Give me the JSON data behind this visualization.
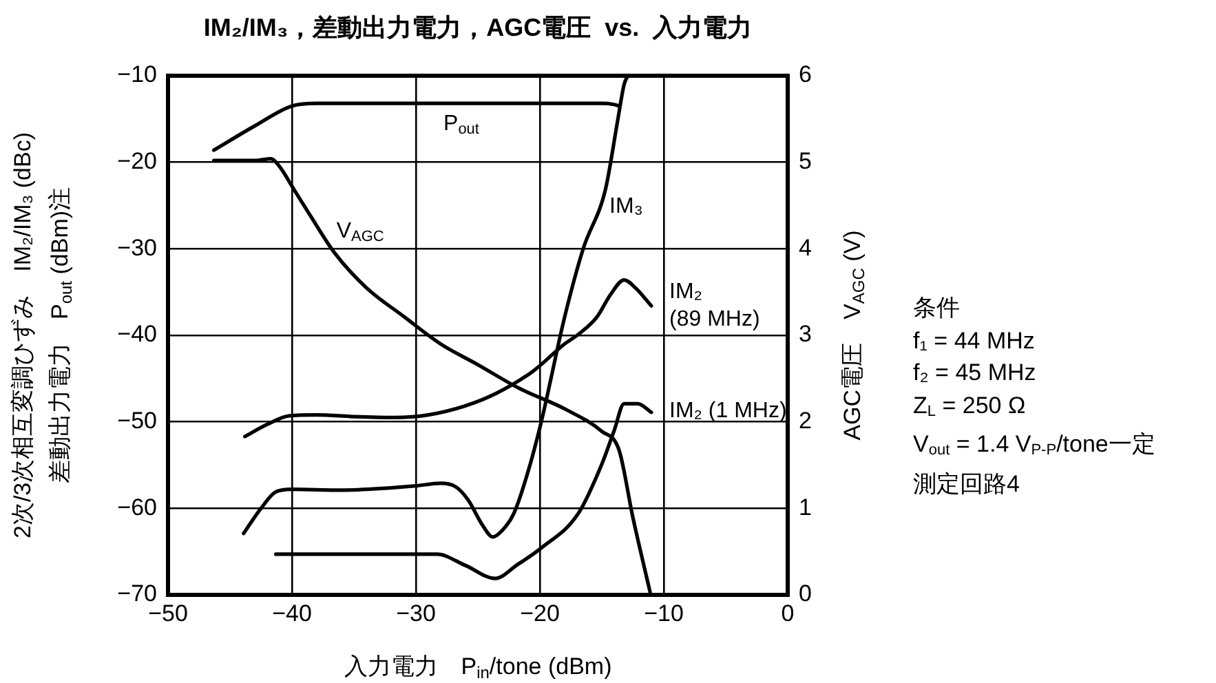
{
  "chart_data": {
    "type": "line",
    "title": "IM₂/IM₃，差動出力電力，AGC電圧  vs.  入力電力",
    "xlabel": "入力電力　P$_{in}$/tone (dBm)",
    "ylabel": "2次/3次相互変調ひずみ　IM₂/IM₃ (dBc)\n差動出力電力　P$_{out}$ (dBm)注",
    "y2label": "AGC電圧　V$_{AGC}$ (V)",
    "xlim": [
      -50,
      0
    ],
    "xticks": [
      {
        "value": -50,
        "label": "−50"
      },
      {
        "value": -40,
        "label": "−40"
      },
      {
        "value": -30,
        "label": "−30"
      },
      {
        "value": -20,
        "label": "−20"
      },
      {
        "value": -10,
        "label": "−10"
      },
      0
    ],
    "ylim": [
      -70,
      -10
    ],
    "yticks": [
      {
        "value": -70,
        "label": "−70"
      },
      {
        "value": -60,
        "label": "−60"
      },
      {
        "value": -50,
        "label": "−50"
      },
      {
        "value": -40,
        "label": "−40"
      },
      {
        "value": -30,
        "label": "−30"
      },
      {
        "value": -20,
        "label": "−20"
      },
      {
        "value": -10,
        "label": "−10"
      }
    ],
    "y2lim": [
      0,
      6
    ],
    "y2ticks": [
      0,
      1,
      2,
      3,
      4,
      5,
      6
    ],
    "grid": true,
    "legend": false,
    "marker": "none",
    "line_style": "solid",
    "series": [
      {
        "name": "P$_{out}$",
        "color": "#000000",
        "x": [
          -46.3,
          -43,
          -40,
          -38,
          -30,
          -20,
          -15,
          -14.1,
          -13.6
        ],
        "values": [
          -18.6,
          -15.8,
          -13.5,
          -13.2,
          -13.2,
          -13.2,
          -13.2,
          -13.3,
          -13.5
        ]
      },
      {
        "name": "V$_{AGC}$",
        "color": "#000000",
        "axis": "y2",
        "x": [
          -46.3,
          -43,
          -41.7,
          -41,
          -39.9,
          -38.5,
          -36.6,
          -34,
          -31,
          -28,
          -25,
          -21.7,
          -18,
          -15,
          -13.6,
          -12.5,
          -11.1
        ],
        "values": [
          5.02,
          5.02,
          5.04,
          4.95,
          4.7,
          4.38,
          3.96,
          3.55,
          3.22,
          2.9,
          2.66,
          2.39,
          2.15,
          1.89,
          1.67,
          0.9,
          0.03
        ]
      },
      {
        "name": "IM₃",
        "color": "#000000",
        "x": [
          -43.9,
          -42.5,
          -41.3,
          -40,
          -36,
          -33.9,
          -30,
          -28,
          -26.8,
          -25.8,
          -24.6,
          -23.8,
          -23,
          -22.1,
          -21,
          -19.9,
          -18,
          -16.5,
          -14.7,
          -13.7,
          -13.2,
          -12.9
        ],
        "values": [
          -62.9,
          -60,
          -58.1,
          -57.8,
          -57.9,
          -57.8,
          -57.4,
          -57.1,
          -57.5,
          -59,
          -62,
          -63.3,
          -62.5,
          -60.6,
          -56,
          -50.1,
          -37.9,
          -30,
          -23.1,
          -15,
          -11,
          -10
        ]
      },
      {
        "name": "IM₂\n(89 MHz)",
        "color": "#000000",
        "x": [
          -43.8,
          -42,
          -40.2,
          -38,
          -35,
          -31.7,
          -29,
          -26.1,
          -23.5,
          -20.6,
          -18,
          -16.9,
          -15.4,
          -14.3,
          -13.2,
          -12.3,
          -11
        ],
        "values": [
          -51.7,
          -50.3,
          -49.3,
          -49.2,
          -49.4,
          -49.5,
          -49.2,
          -48.2,
          -46.7,
          -44.2,
          -41,
          -39.9,
          -37.9,
          -35.3,
          -33.6,
          -34.5,
          -36.6
        ]
      },
      {
        "name": "IM₂ (1 MHz)",
        "color": "#000000",
        "x": [
          -41.3,
          -35,
          -28.3,
          -26,
          -23.6,
          -21.8,
          -19.9,
          -16.9,
          -15,
          -14,
          -13.2,
          -12.1,
          -11
        ],
        "values": [
          -65.3,
          -65.3,
          -65.3,
          -66.6,
          -68.1,
          -66.5,
          -64.6,
          -60.6,
          -54.9,
          -51,
          -47.9,
          -47.9,
          -48.9
        ]
      }
    ],
    "annotations": [
      "条件",
      "f₁ = 44 MHz",
      "f₂ = 45 MHz",
      "Z$_{L}$ = 250 Ω",
      "V$_{out}$ = 1.4 V$_{P-P}$/tone一定",
      "測定回路4"
    ]
  }
}
